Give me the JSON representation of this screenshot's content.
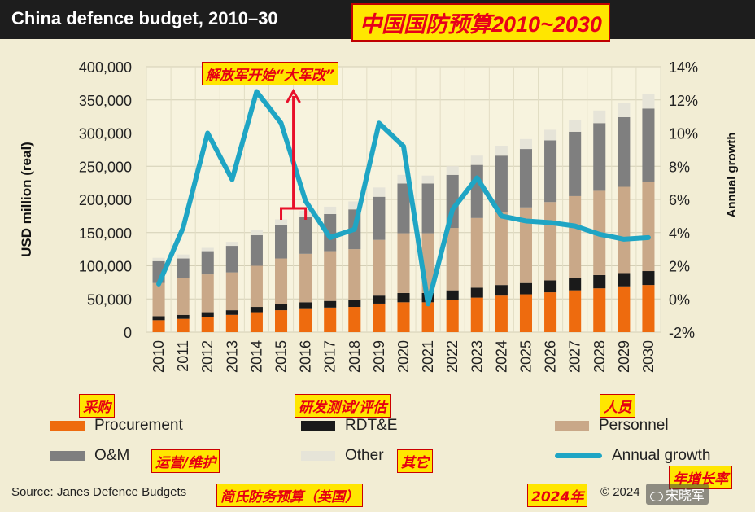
{
  "header": {
    "title_en": "China defence budget, 2010–30",
    "title_cn": "中国国防预算2010~2030"
  },
  "chart_data": {
    "type": "bar",
    "stacked": true,
    "categories": [
      "2010",
      "2011",
      "2012",
      "2013",
      "2014",
      "2015",
      "2016",
      "2017",
      "2018",
      "2019",
      "2020",
      "2021",
      "2022",
      "2023",
      "2024",
      "2025",
      "2026",
      "2027",
      "2028",
      "2029",
      "2030"
    ],
    "ylabel": "USD million (real)",
    "ylim": [
      0,
      400000
    ],
    "yticks": [
      0,
      50000,
      100000,
      150000,
      200000,
      250000,
      300000,
      350000,
      400000
    ],
    "ytick_labels": [
      "0",
      "50,000",
      "100,000",
      "150,000",
      "200,000",
      "250,000",
      "300,000",
      "350,000",
      "400,000"
    ],
    "y2label": "Annual growth",
    "y2lim": [
      -2,
      14
    ],
    "y2ticks": [
      -2,
      0,
      2,
      4,
      6,
      8,
      10,
      12,
      14
    ],
    "y2tick_labels": [
      "-2%",
      "0%",
      "2%",
      "4%",
      "6%",
      "8%",
      "10%",
      "12%",
      "14%"
    ],
    "grid": true,
    "series": [
      {
        "name": "Procurement",
        "color": "#ee6b0e",
        "values": [
          18000,
          20000,
          23000,
          26000,
          30000,
          33000,
          36000,
          37000,
          38000,
          43000,
          45000,
          45000,
          49000,
          52000,
          55000,
          57000,
          60000,
          63000,
          66000,
          69000,
          71000
        ]
      },
      {
        "name": "RDT&E",
        "color": "#1a1a1a",
        "values": [
          6000,
          6000,
          7000,
          7000,
          8000,
          9000,
          9000,
          10000,
          11000,
          12000,
          14000,
          14000,
          14000,
          15000,
          16000,
          17000,
          18000,
          19000,
          20000,
          20000,
          21000
        ]
      },
      {
        "name": "Personnel",
        "color": "#c9a888",
        "values": [
          50000,
          55000,
          57000,
          57000,
          62000,
          69000,
          73000,
          75000,
          76000,
          84000,
          90000,
          90000,
          94000,
          105000,
          110000,
          114000,
          118000,
          123000,
          127000,
          130000,
          135000
        ]
      },
      {
        "name": "O&M",
        "color": "#7f7f7f",
        "values": [
          33000,
          30000,
          35000,
          40000,
          46000,
          50000,
          55000,
          56000,
          60000,
          65000,
          75000,
          75000,
          80000,
          80000,
          85000,
          88000,
          93000,
          97000,
          102000,
          105000,
          110000
        ]
      },
      {
        "name": "Other",
        "color": "#e6e4d8",
        "values": [
          5000,
          6000,
          5000,
          6000,
          8000,
          9000,
          10000,
          11000,
          12000,
          14000,
          13000,
          12000,
          13000,
          14000,
          15000,
          15000,
          16000,
          18000,
          19000,
          21000,
          22000
        ]
      }
    ],
    "line_series": {
      "name": "Annual growth",
      "color": "#1fa5c4",
      "axis": "right",
      "values": [
        0.9,
        4.3,
        10.0,
        7.2,
        12.5,
        10.6,
        5.9,
        3.7,
        4.2,
        10.6,
        9.2,
        -0.3,
        5.4,
        7.3,
        5.0,
        4.7,
        4.6,
        4.4,
        3.9,
        3.6,
        3.7
      ]
    }
  },
  "annotations": {
    "reform": "解放军开始“大军改”",
    "procurement_cn": "采购",
    "rdte_cn": "研发测试/评估",
    "personnel_cn": "人员",
    "om_cn": "运营/维护",
    "other_cn": "其它",
    "growth_cn": "年增长率",
    "source_cn": "简氏防务预算（英国）",
    "year_cn": "2024年"
  },
  "legend": {
    "procurement": "Procurement",
    "rdte": "RDT&E",
    "personnel": "Personnel",
    "om": "O&M",
    "other": "Other",
    "growth": "Annual growth",
    "colors": {
      "procurement": "#ee6b0e",
      "rdte": "#1a1a1a",
      "personnel": "#c9a888",
      "om": "#7f7f7f",
      "other": "#e6e4d8",
      "growth": "#1fa5c4"
    }
  },
  "footer": {
    "source": "Source: Janes Defence Budgets",
    "copyright": "© 2024",
    "watermark": "宋晓军"
  }
}
